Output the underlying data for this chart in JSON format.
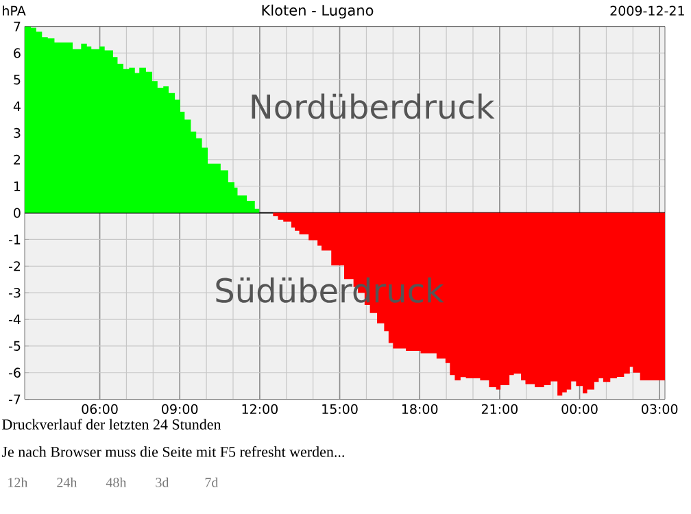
{
  "chart_data": {
    "type": "area",
    "title": "Kloten - Lugano",
    "subtitle": "2009-12-21",
    "ylabel": "hPA",
    "annotations": [
      "Nordüberdruck",
      "Südüberdruck",
      "Druckverlauf der letzten 24 Stunden",
      "Je nach Browser muss die Seite mit F5 refresht werden...",
      "12h",
      "24h",
      "48h",
      "3d",
      "7d"
    ],
    "series": [
      {
        "color": "#00ff00",
        "x": [
          "2009-12-20T03:11",
          "2009-12-20T03:25",
          "2009-12-20T03:37",
          "2009-12-20T03:50",
          "2009-12-20T04:03",
          "2009-12-20T04:18",
          "2009-12-20T04:59",
          "2009-12-20T05:18",
          "2009-12-20T05:31",
          "2009-12-20T05:41",
          "2009-12-20T05:59",
          "2009-12-20T06:11",
          "2009-12-20T06:30",
          "2009-12-20T06:40",
          "2009-12-20T06:53",
          "2009-12-20T07:06",
          "2009-12-20T07:19",
          "2009-12-20T07:29",
          "2009-12-20T07:44",
          "2009-12-20T07:58",
          "2009-12-20T08:10",
          "2009-12-20T08:23",
          "2009-12-20T08:35",
          "2009-12-20T08:49",
          "2009-12-20T09:01",
          "2009-12-20T09:11",
          "2009-12-20T09:25",
          "2009-12-20T09:37",
          "2009-12-20T09:50",
          "2009-12-20T10:03",
          "2009-12-20T10:32",
          "2009-12-20T10:49",
          "2009-12-20T11:03",
          "2009-12-20T11:10",
          "2009-12-20T11:31",
          "2009-12-20T11:49",
          "2009-12-20T11:59"
        ],
        "values": [
          7.0,
          6.95,
          6.8,
          6.6,
          6.55,
          6.4,
          6.15,
          6.35,
          6.25,
          6.15,
          6.25,
          6.1,
          5.85,
          5.6,
          5.4,
          5.45,
          5.25,
          5.45,
          5.3,
          4.95,
          4.7,
          4.75,
          4.5,
          4.25,
          3.8,
          3.5,
          3.05,
          2.8,
          2.45,
          1.85,
          1.6,
          1.15,
          0.95,
          0.65,
          0.45,
          0.15,
          0
        ]
      },
      {
        "color": "#ff0000",
        "x": [
          "2009-12-20T12:30",
          "2009-12-20T12:41",
          "2009-12-20T12:53",
          "2009-12-20T13:11",
          "2009-12-20T13:19",
          "2009-12-20T13:29",
          "2009-12-20T13:50",
          "2009-12-20T14:10",
          "2009-12-20T14:19",
          "2009-12-20T14:41",
          "2009-12-20T15:10",
          "2009-12-20T15:31",
          "2009-12-20T15:41",
          "2009-12-20T15:56",
          "2009-12-20T16:08",
          "2009-12-20T16:24",
          "2009-12-20T16:40",
          "2009-12-20T16:50",
          "2009-12-20T17:00",
          "2009-12-20T17:29",
          "2009-12-20T18:02",
          "2009-12-20T18:38",
          "2009-12-20T18:58",
          "2009-12-20T19:08",
          "2009-12-20T19:19",
          "2009-12-20T19:32",
          "2009-12-20T19:44",
          "2009-12-20T20:16",
          "2009-12-20T20:36",
          "2009-12-20T20:52",
          "2009-12-20T21:02",
          "2009-12-20T21:22",
          "2009-12-20T21:32",
          "2009-12-20T21:48",
          "2009-12-20T21:58",
          "2009-12-20T22:19",
          "2009-12-20T22:40",
          "2009-12-20T22:55",
          "2009-12-20T23:10",
          "2009-12-20T23:21",
          "2009-12-20T23:31",
          "2009-12-20T23:41",
          "2009-12-20T23:52",
          "2009-12-21T00:07",
          "2009-12-21T00:17",
          "2009-12-21T00:33",
          "2009-12-21T00:43",
          "2009-12-21T00:53",
          "2009-12-21T01:09",
          "2009-12-21T01:24",
          "2009-12-21T01:40",
          "2009-12-21T01:53",
          "2009-12-21T02:00",
          "2009-12-21T02:16",
          "2009-12-21T03:12"
        ],
        "values": [
          -0.12,
          -0.26,
          -0.33,
          -0.55,
          -0.67,
          -0.81,
          -1.03,
          -1.23,
          -1.41,
          -1.97,
          -2.49,
          -2.78,
          -3.0,
          -3.46,
          -3.76,
          -4.15,
          -4.44,
          -4.89,
          -5.09,
          -5.18,
          -5.27,
          -5.47,
          -5.64,
          -6.09,
          -6.29,
          -6.17,
          -6.21,
          -6.29,
          -6.55,
          -6.64,
          -6.47,
          -6.09,
          -6.04,
          -6.29,
          -6.43,
          -6.55,
          -6.47,
          -6.33,
          -6.86,
          -6.74,
          -6.64,
          -6.33,
          -6.5,
          -6.78,
          -6.64,
          -6.35,
          -6.21,
          -6.35,
          -6.21,
          -6.16,
          -6.04,
          -5.78,
          -6.0,
          -6.29,
          -6.29
        ]
      }
    ],
    "xlim": [
      "2009-12-20T03:11",
      "2009-12-21T03:12"
    ],
    "ylim": [
      -7,
      7
    ],
    "xticks": [
      {
        "value": "2009-12-20T06:00",
        "label": "06:00"
      },
      {
        "value": "2009-12-20T09:00",
        "label": "09:00"
      },
      {
        "value": "2009-12-20T12:00",
        "label": "12:00"
      },
      {
        "value": "2009-12-20T15:00",
        "label": "15:00"
      },
      {
        "value": "2009-12-20T18:00",
        "label": "18:00"
      },
      {
        "value": "2009-12-20T21:00",
        "label": "21:00"
      },
      {
        "value": "2009-12-21T00:00",
        "label": "00:00"
      },
      {
        "value": "2009-12-21T03:00",
        "label": "03:00"
      }
    ],
    "yticks": [
      -7,
      -6,
      -5,
      -4,
      -3,
      -2,
      -1,
      0,
      1,
      2,
      3,
      4,
      5,
      6,
      7
    ],
    "ref_lines": [
      {
        "axis": "y",
        "value": 0,
        "color": "#000000"
      }
    ],
    "grid": true
  }
}
